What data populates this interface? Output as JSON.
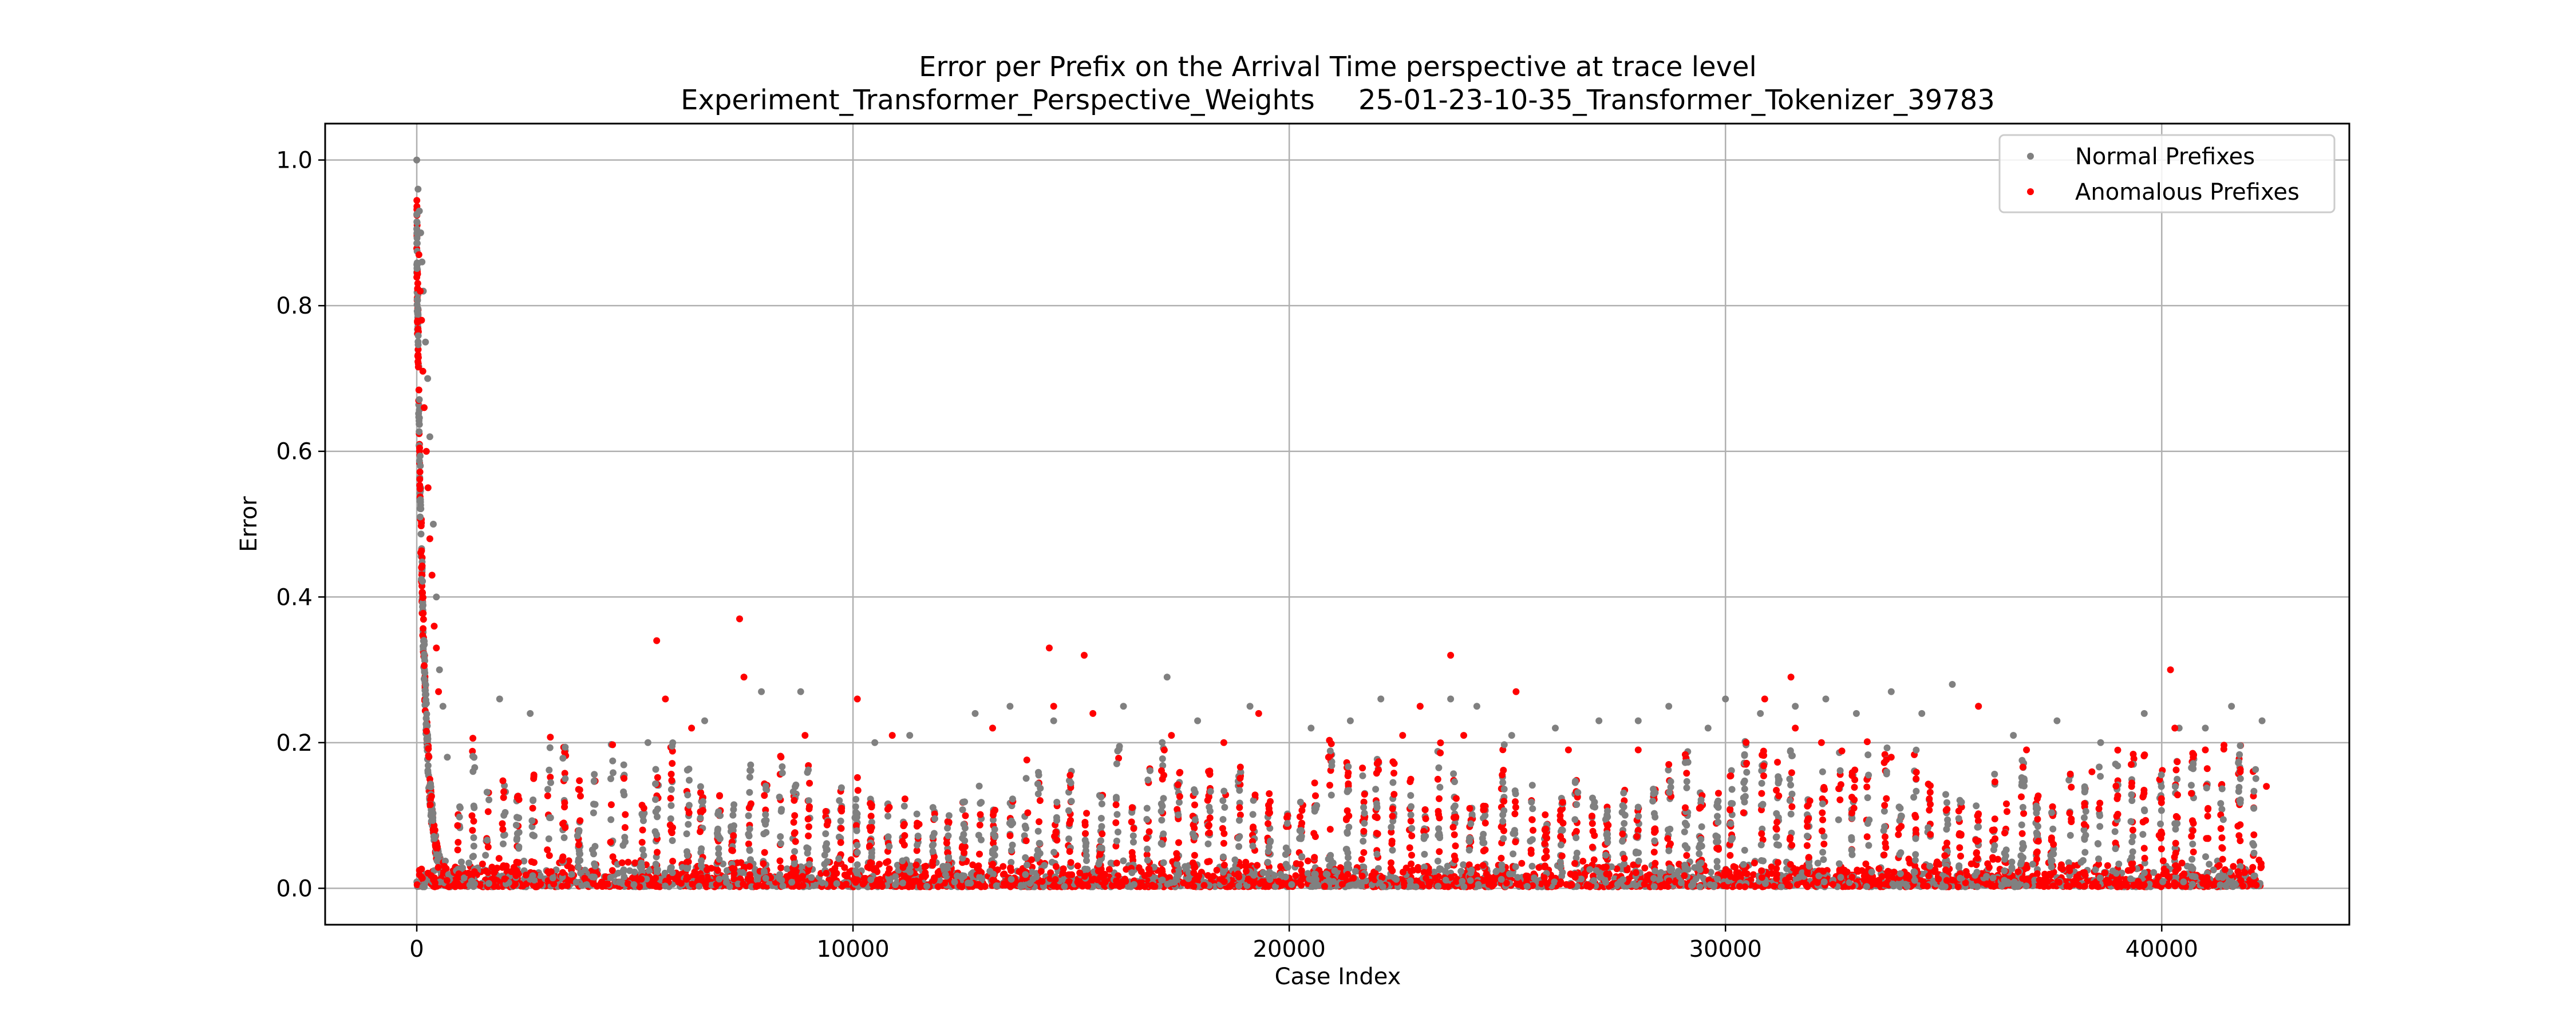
{
  "chart_data": {
    "type": "scatter",
    "title": "Error per Prefix on the Arrival Time perspective at trace level",
    "subtitle": "Experiment_Transformer_Perspective_Weights     25-01-23-10-35_Transformer_Tokenizer_39783",
    "xlabel": "Case Index",
    "ylabel": "Error",
    "xlim": [
      -2100,
      44300
    ],
    "ylim": [
      -0.05,
      1.05
    ],
    "xticks": [
      0,
      10000,
      20000,
      30000,
      40000
    ],
    "yticks": [
      0.0,
      0.2,
      0.4,
      0.6,
      0.8,
      1.0
    ],
    "ytick_labels": [
      "0.0",
      "0.2",
      "0.4",
      "0.6",
      "0.8",
      "1.0"
    ],
    "grid": true,
    "legend_position": "top-right",
    "series": [
      {
        "name": "Normal Prefixes",
        "color": "#808080",
        "highlights": [
          [
            0,
            1.0
          ],
          [
            30,
            0.96
          ],
          [
            60,
            0.93
          ],
          [
            90,
            0.9
          ],
          [
            120,
            0.86
          ],
          [
            150,
            0.82
          ],
          [
            200,
            0.75
          ],
          [
            250,
            0.7
          ],
          [
            300,
            0.62
          ],
          [
            380,
            0.5
          ],
          [
            450,
            0.4
          ],
          [
            520,
            0.3
          ],
          [
            600,
            0.25
          ],
          [
            700,
            0.18
          ],
          [
            1900,
            0.26
          ],
          [
            2600,
            0.24
          ],
          [
            5300,
            0.2
          ],
          [
            6600,
            0.23
          ],
          [
            7900,
            0.27
          ],
          [
            8800,
            0.27
          ],
          [
            10500,
            0.2
          ],
          [
            11300,
            0.21
          ],
          [
            12800,
            0.24
          ],
          [
            13600,
            0.25
          ],
          [
            14600,
            0.23
          ],
          [
            16200,
            0.25
          ],
          [
            17200,
            0.29
          ],
          [
            17900,
            0.23
          ],
          [
            19100,
            0.25
          ],
          [
            20500,
            0.22
          ],
          [
            21400,
            0.23
          ],
          [
            22100,
            0.26
          ],
          [
            23000,
            0.25
          ],
          [
            23700,
            0.26
          ],
          [
            24300,
            0.25
          ],
          [
            25100,
            0.21
          ],
          [
            26100,
            0.22
          ],
          [
            27100,
            0.23
          ],
          [
            28000,
            0.23
          ],
          [
            28700,
            0.25
          ],
          [
            29600,
            0.22
          ],
          [
            30000,
            0.26
          ],
          [
            30800,
            0.24
          ],
          [
            31600,
            0.25
          ],
          [
            32300,
            0.26
          ],
          [
            33000,
            0.24
          ],
          [
            33800,
            0.27
          ],
          [
            34500,
            0.24
          ],
          [
            35200,
            0.28
          ],
          [
            35800,
            0.25
          ],
          [
            36600,
            0.21
          ],
          [
            37600,
            0.23
          ],
          [
            38600,
            0.2
          ],
          [
            39600,
            0.24
          ],
          [
            40400,
            0.22
          ],
          [
            41000,
            0.22
          ],
          [
            41600,
            0.25
          ],
          [
            42300,
            0.23
          ]
        ]
      },
      {
        "name": "Anomalous Prefixes",
        "color": "#ff0000",
        "highlights": [
          [
            50,
            0.87
          ],
          [
            80,
            0.82
          ],
          [
            110,
            0.78
          ],
          [
            140,
            0.71
          ],
          [
            170,
            0.66
          ],
          [
            220,
            0.6
          ],
          [
            260,
            0.55
          ],
          [
            300,
            0.48
          ],
          [
            350,
            0.43
          ],
          [
            400,
            0.36
          ],
          [
            450,
            0.33
          ],
          [
            500,
            0.27
          ],
          [
            5500,
            0.34
          ],
          [
            5700,
            0.26
          ],
          [
            6300,
            0.22
          ],
          [
            7400,
            0.37
          ],
          [
            7500,
            0.29
          ],
          [
            8900,
            0.21
          ],
          [
            10100,
            0.26
          ],
          [
            10900,
            0.21
          ],
          [
            13200,
            0.22
          ],
          [
            14500,
            0.33
          ],
          [
            14600,
            0.25
          ],
          [
            15300,
            0.32
          ],
          [
            15500,
            0.24
          ],
          [
            17300,
            0.21
          ],
          [
            18500,
            0.2
          ],
          [
            19300,
            0.24
          ],
          [
            20900,
            0.18
          ],
          [
            22600,
            0.21
          ],
          [
            23000,
            0.25
          ],
          [
            23700,
            0.32
          ],
          [
            24000,
            0.21
          ],
          [
            25200,
            0.27
          ],
          [
            26400,
            0.19
          ],
          [
            28000,
            0.19
          ],
          [
            28700,
            0.17
          ],
          [
            30900,
            0.26
          ],
          [
            31500,
            0.29
          ],
          [
            31600,
            0.22
          ],
          [
            32200,
            0.2
          ],
          [
            33800,
            0.18
          ],
          [
            35800,
            0.25
          ],
          [
            36900,
            0.19
          ],
          [
            38400,
            0.16
          ],
          [
            39300,
            0.17
          ],
          [
            40200,
            0.3
          ],
          [
            40300,
            0.22
          ],
          [
            41000,
            0.19
          ],
          [
            41800,
            0.16
          ],
          [
            42400,
            0.14
          ]
        ]
      }
    ]
  }
}
